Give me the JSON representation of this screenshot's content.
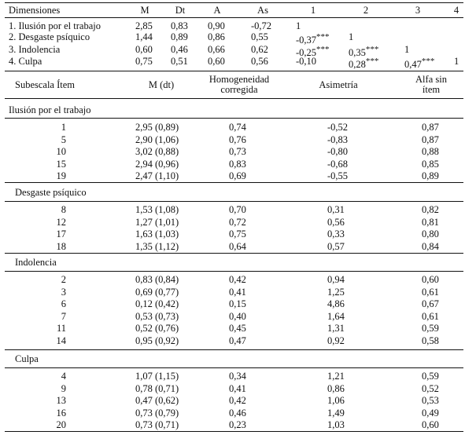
{
  "table1": {
    "headers": [
      "Dimensiones",
      "M",
      "Dt",
      "A",
      "As",
      "1",
      "2",
      "3",
      "4"
    ],
    "rows": [
      {
        "label": "1. Ilusión por el trabajo",
        "m": "2,85",
        "dt": "0,83",
        "a": "0,90",
        "as": "-0,72",
        "c1": "1",
        "c2": "",
        "c3": "",
        "c4": ""
      },
      {
        "label": "2. Desgaste psíquico",
        "m": "1,44",
        "dt": "0,89",
        "a": "0,86",
        "as": "0,55",
        "c1": "-0,37***",
        "c2": "1",
        "c3": "",
        "c4": ""
      },
      {
        "label": "3. Indolencia",
        "m": "0,60",
        "dt": "0,46",
        "a": "0,66",
        "as": "0,62",
        "c1": "-0,25***",
        "c2": "0,35***",
        "c3": "1",
        "c4": ""
      },
      {
        "label": "4. Culpa",
        "m": "0,75",
        "dt": "0,51",
        "a": "0,60",
        "as": "0,56",
        "c1": "-0,10",
        "c2": "0,28***",
        "c3": "0,47***",
        "c4": "1"
      }
    ]
  },
  "table2": {
    "headers": {
      "item": "Subescala Ítem",
      "mdt": "M (dt)",
      "hom": [
        "Homogeneidad",
        "corregida"
      ],
      "asim": "Asimetría",
      "alfa": [
        "Alfa sin",
        "ítem"
      ]
    },
    "sections": [
      {
        "title": "Ilusión por el trabajo",
        "rows": [
          {
            "item": "1",
            "mdt": "2,95 (0,89)",
            "hom": "0,74",
            "asim": "-0,52",
            "alfa": "0,87"
          },
          {
            "item": "5",
            "mdt": "2,90 (1,06)",
            "hom": "0,76",
            "asim": "-0,83",
            "alfa": "0,87"
          },
          {
            "item": "10",
            "mdt": "3,02 (0,88)",
            "hom": "0,73",
            "asim": "-0,80",
            "alfa": "0,88"
          },
          {
            "item": "15",
            "mdt": "2,94 (0,96)",
            "hom": "0,83",
            "asim": "-0,68",
            "alfa": "0,85"
          },
          {
            "item": "19",
            "mdt": "2,47 (1,10)",
            "hom": "0,69",
            "asim": "-0,55",
            "alfa": "0,89"
          }
        ]
      },
      {
        "title": "Desgaste psíquico",
        "rows": [
          {
            "item": "8",
            "mdt": "1,53 (1,08)",
            "hom": "0,70",
            "asim": "0,31",
            "alfa": "0,82"
          },
          {
            "item": "12",
            "mdt": "1,27 (1,01)",
            "hom": "0,72",
            "asim": "0,56",
            "alfa": "0,81"
          },
          {
            "item": "17",
            "mdt": "1,63 (1,03)",
            "hom": "0,75",
            "asim": "0,33",
            "alfa": "0,80"
          },
          {
            "item": "18",
            "mdt": "1,35 (1,12)",
            "hom": "0,64",
            "asim": "0,57",
            "alfa": "0,84"
          }
        ]
      },
      {
        "title": "Indolencia",
        "rows": [
          {
            "item": "2",
            "mdt": "0,83 (0,84)",
            "hom": "0,42",
            "asim": "0,94",
            "alfa": "0,60"
          },
          {
            "item": "3",
            "mdt": "0,69 (0,77)",
            "hom": "0,41",
            "asim": "1,25",
            "alfa": "0,61"
          },
          {
            "item": "6",
            "mdt": "0,12 (0,42)",
            "hom": "0,15",
            "asim": "4,86",
            "alfa": "0,67"
          },
          {
            "item": "7",
            "mdt": "0,53 (0,73)",
            "hom": "0,40",
            "asim": "1,64",
            "alfa": "0,61"
          },
          {
            "item": "11",
            "mdt": "0,52 (0,76)",
            "hom": "0,45",
            "asim": "1,31",
            "alfa": "0,59"
          },
          {
            "item": "14",
            "mdt": "0,95 (0,92)",
            "hom": "0,47",
            "asim": "0,92",
            "alfa": "0,58"
          }
        ]
      },
      {
        "title": "Culpa",
        "rows": [
          {
            "item": "4",
            "mdt": "1,07 (1,15)",
            "hom": "0,34",
            "asim": "1,21",
            "alfa": "0,59"
          },
          {
            "item": "9",
            "mdt": "0,78 (0,71)",
            "hom": "0,41",
            "asim": "0,86",
            "alfa": "0,52"
          },
          {
            "item": "13",
            "mdt": "0,47 (0,62)",
            "hom": "0,42",
            "asim": "1,06",
            "alfa": "0,53"
          },
          {
            "item": "16",
            "mdt": "0,73 (0,79)",
            "hom": "0,46",
            "asim": "1,49",
            "alfa": "0,49"
          },
          {
            "item": "20",
            "mdt": "0,73 (0,71)",
            "hom": "0,23",
            "asim": "1,03",
            "alfa": "0,60"
          }
        ]
      }
    ]
  }
}
